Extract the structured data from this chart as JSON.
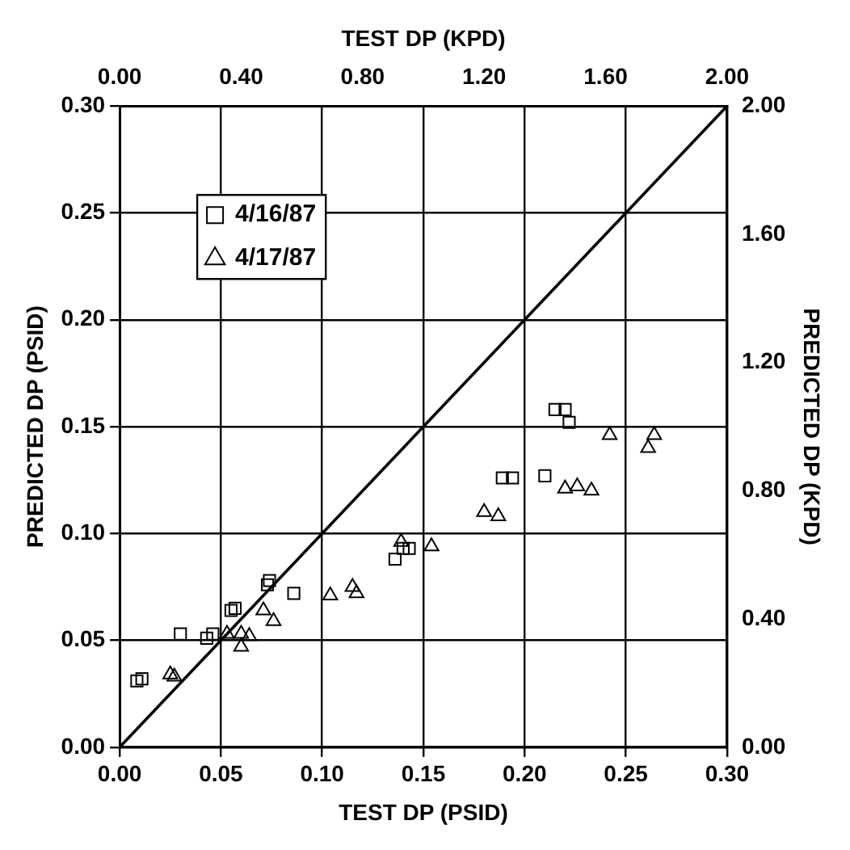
{
  "chart_data": {
    "type": "scatter",
    "xlabel": "TEST DP (PSID)",
    "ylabel": "PREDICTED DP (PSID)",
    "x2label": "TEST DP (KPD)",
    "y2label": "PREDICTED DP (KPD)",
    "xlim": [
      0,
      0.3
    ],
    "xticks": [
      {
        "value": 0,
        "label": "0.00"
      },
      0.05,
      {
        "value": 0.1,
        "label": "0.10"
      },
      0.15,
      {
        "value": 0.2,
        "label": "0.20"
      },
      0.25,
      {
        "value": 0.3,
        "label": "0.30"
      }
    ],
    "ylim": [
      0,
      0.3
    ],
    "yticks": [
      {
        "value": 0,
        "label": "0.00"
      },
      0.05,
      {
        "value": 0.1,
        "label": "0.10"
      },
      0.15,
      {
        "value": 0.2,
        "label": "0.20"
      },
      0.25,
      {
        "value": 0.3,
        "label": "0.30"
      }
    ],
    "x2lim": [
      0,
      2
    ],
    "x2ticks": [
      {
        "value": 0,
        "label": "0.00"
      },
      {
        "value": 0.4,
        "label": "0.40"
      },
      {
        "value": 0.8,
        "label": "0.80"
      },
      {
        "value": 1.2,
        "label": "1.20"
      },
      {
        "value": 1.6,
        "label": "1.60"
      },
      {
        "value": 2,
        "label": "2.00"
      }
    ],
    "y2lim": [
      0,
      2
    ],
    "y2ticks": [
      {
        "value": 0,
        "label": "0.00"
      },
      {
        "value": 0.4,
        "label": "0.40"
      },
      {
        "value": 0.8,
        "label": "0.80"
      },
      {
        "value": 1.2,
        "label": "1.20"
      },
      {
        "value": 1.6,
        "label": "1.60"
      },
      {
        "value": 2,
        "label": "2.00"
      }
    ],
    "grid": true,
    "legend": "top left",
    "series": [
      {
        "name": "4/16/87",
        "color": "#000000",
        "marker": "square",
        "x": [
          0.0085,
          0.011,
          0.03,
          0.043,
          0.046,
          0.055,
          0.057,
          0.073,
          0.074,
          0.086,
          0.136,
          0.14,
          0.143,
          0.189,
          0.194,
          0.21,
          0.215,
          0.22,
          0.222
        ],
        "values": [
          0.031,
          0.032,
          0.053,
          0.051,
          0.053,
          0.064,
          0.065,
          0.076,
          0.078,
          0.072,
          0.088,
          0.093,
          0.093,
          0.126,
          0.126,
          0.127,
          0.158,
          0.158,
          0.152
        ]
      },
      {
        "name": "4/17/87",
        "color": "#000000",
        "marker": "triangle",
        "x": [
          0.025,
          0.027,
          0.053,
          0.06,
          0.06,
          0.064,
          0.071,
          0.076,
          0.104,
          0.115,
          0.117,
          0.139,
          0.154,
          0.18,
          0.187,
          0.22,
          0.226,
          0.233,
          0.242,
          0.264,
          0.261
        ],
        "values": [
          0.034,
          0.033,
          0.053,
          0.053,
          0.047,
          0.052,
          0.064,
          0.059,
          0.071,
          0.075,
          0.072,
          0.096,
          0.094,
          0.11,
          0.108,
          0.121,
          0.122,
          0.12,
          0.146,
          0.146,
          0.14
        ]
      },
      {
        "type": "line",
        "color": "#000000",
        "marker": "none",
        "x": [
          0,
          0.3
        ],
        "values": [
          0,
          0.3
        ]
      }
    ]
  }
}
